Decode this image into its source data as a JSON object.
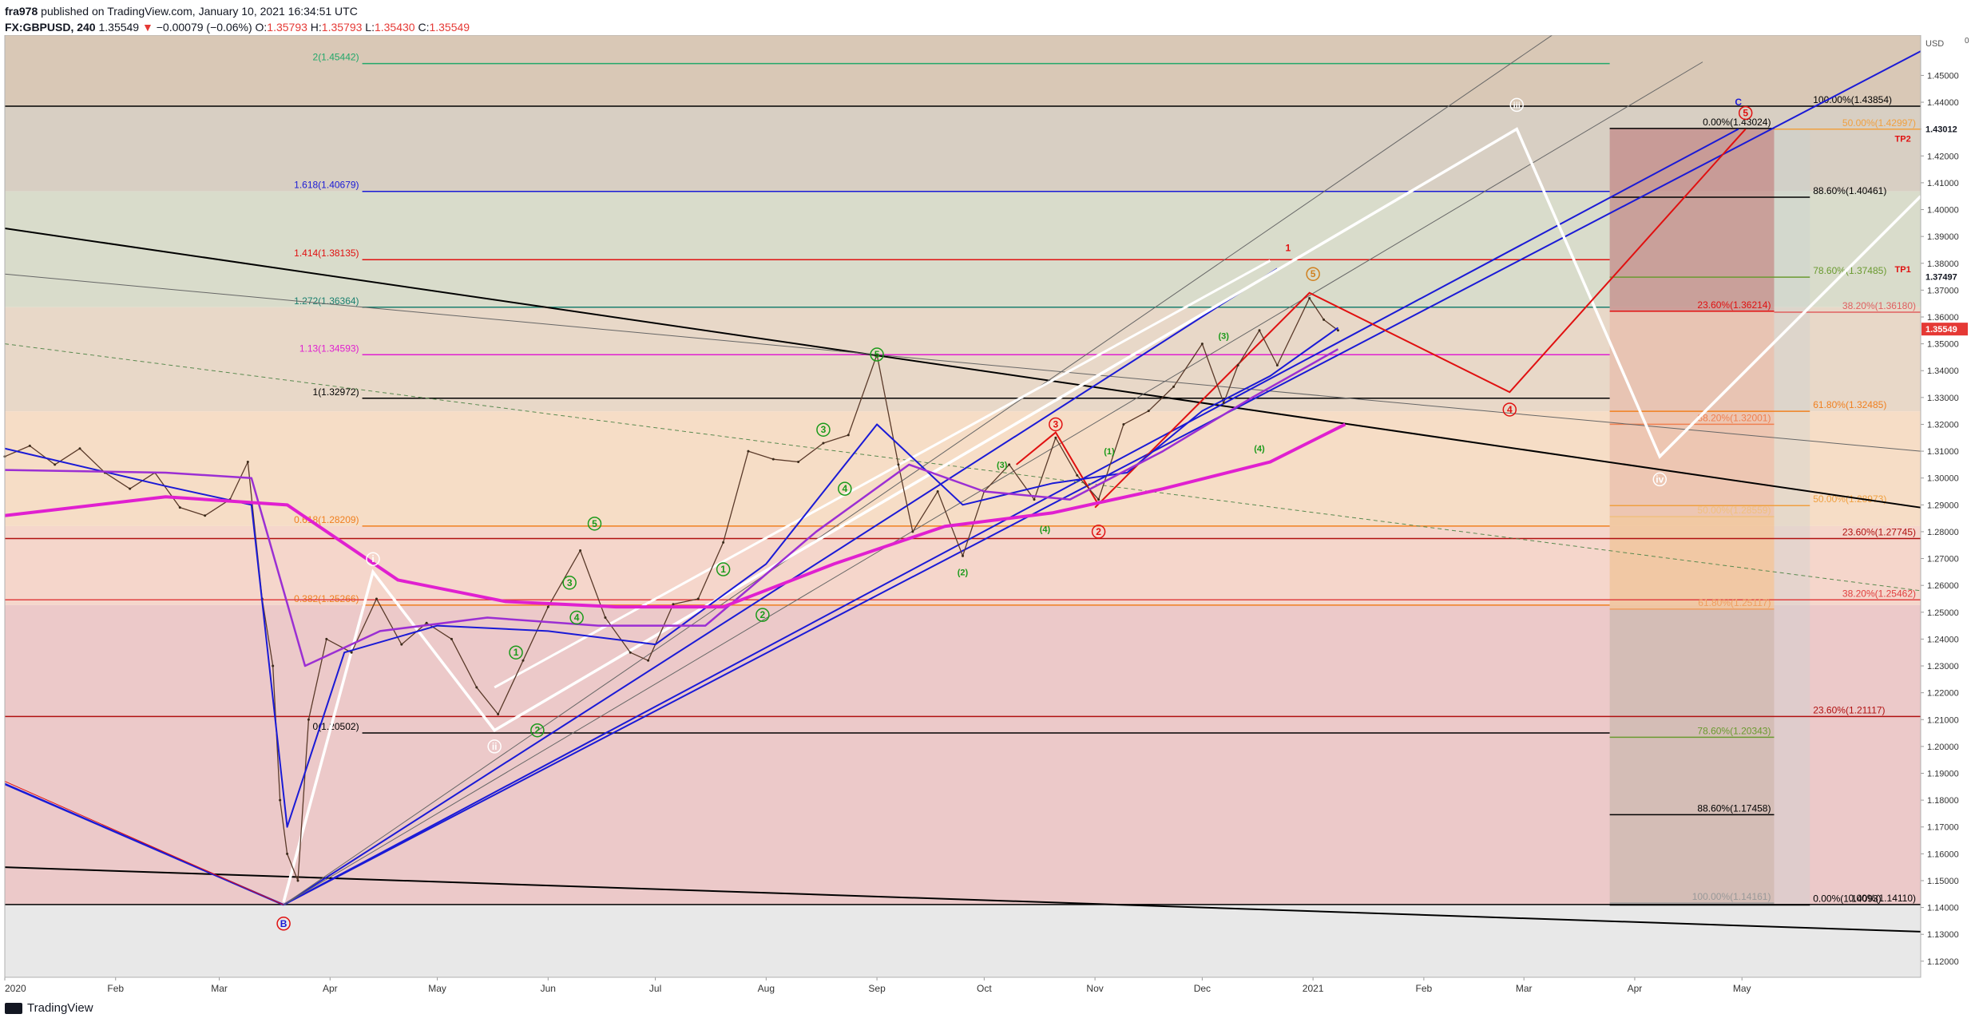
{
  "header": {
    "line1_user": "fra978",
    "line1_rest": "published on TradingView.com, January 10, 2021 16:34:51 UTC",
    "symbol": "FX:GBPUSD, 240",
    "last": "1.35549",
    "change": "−0.00079 (−0.06%)",
    "open_lbl": "O:",
    "open": "1.35793",
    "high_lbl": "H:",
    "high": "1.35793",
    "low_lbl": "L:",
    "low": "1.35430",
    "close_lbl": "C:",
    "close": "1.35549"
  },
  "footer": {
    "brand": "TradingView"
  },
  "axis_unit": "USD",
  "axis_extra": "0",
  "colors": {
    "blue": "#1a1ad6",
    "magenta": "#e020d0",
    "purple": "#9b2fd3",
    "red": "#e01010",
    "orange": "#f08020",
    "green": "#1a9a1a",
    "white": "#ffffff",
    "black": "#000000"
  },
  "chart_data": {
    "type": "line",
    "ylim": [
      1.114,
      1.465
    ],
    "xlim": [
      "2020-01-01",
      "2021-06-20"
    ],
    "x_ticks": [
      "2020",
      "Feb",
      "Mar",
      "Apr",
      "May",
      "Jun",
      "Jul",
      "Aug",
      "Sep",
      "Oct",
      "Nov",
      "Dec",
      "2021",
      "Feb",
      "Mar",
      "Apr",
      "May"
    ],
    "x_tick_dates": [
      "2020-01-01",
      "2020-02-01",
      "2020-03-01",
      "2020-04-01",
      "2020-05-01",
      "2020-06-01",
      "2020-07-01",
      "2020-08-01",
      "2020-09-01",
      "2020-10-01",
      "2020-11-01",
      "2020-12-01",
      "2021-01-01",
      "2021-02-01",
      "2021-03-01",
      "2021-04-01",
      "2021-05-01"
    ],
    "y_ticks": [
      1.12,
      1.13,
      1.14,
      1.15,
      1.16,
      1.17,
      1.18,
      1.19,
      1.2,
      1.21,
      1.22,
      1.23,
      1.24,
      1.25,
      1.26,
      1.27,
      1.28,
      1.29,
      1.3,
      1.31,
      1.32,
      1.33,
      1.34,
      1.35,
      1.36,
      1.37,
      1.38,
      1.39,
      1.4,
      1.41,
      1.42,
      1.43,
      1.44,
      1.45
    ],
    "price_labels": [
      {
        "text": "1.43012",
        "y": 1.43012,
        "color": "#131722"
      },
      {
        "text": "1.37497",
        "y": 1.37497,
        "color": "#131722"
      },
      {
        "text": "1.35549",
        "y": 1.35549,
        "color": "#e53935"
      }
    ],
    "series": [
      {
        "name": "",
        "kind": "price",
        "x": [
          "2020-01-01",
          "2020-01-08",
          "2020-01-15",
          "2020-01-22",
          "2020-01-29",
          "2020-02-05",
          "2020-02-12",
          "2020-02-19",
          "2020-02-26",
          "2020-03-04",
          "2020-03-09",
          "2020-03-13",
          "2020-03-16",
          "2020-03-18",
          "2020-03-20",
          "2020-03-23",
          "2020-03-26",
          "2020-03-31",
          "2020-04-07",
          "2020-04-14",
          "2020-04-21",
          "2020-04-28",
          "2020-05-05",
          "2020-05-12",
          "2020-05-18",
          "2020-05-25",
          "2020-06-01",
          "2020-06-10",
          "2020-06-17",
          "2020-06-24",
          "2020-06-29",
          "2020-07-06",
          "2020-07-13",
          "2020-07-20",
          "2020-07-27",
          "2020-08-03",
          "2020-08-10",
          "2020-08-17",
          "2020-08-24",
          "2020-09-01",
          "2020-09-07",
          "2020-09-11",
          "2020-09-18",
          "2020-09-25",
          "2020-10-01",
          "2020-10-08",
          "2020-10-15",
          "2020-10-21",
          "2020-10-27",
          "2020-11-02",
          "2020-11-09",
          "2020-11-16",
          "2020-11-23",
          "2020-12-01",
          "2020-12-07",
          "2020-12-11",
          "2020-12-17",
          "2020-12-22",
          "2020-12-31",
          "2021-01-04",
          "2021-01-08"
        ],
        "values": [
          1.308,
          1.312,
          1.305,
          1.311,
          1.302,
          1.296,
          1.302,
          1.289,
          1.286,
          1.292,
          1.306,
          1.255,
          1.23,
          1.18,
          1.16,
          1.15,
          1.21,
          1.24,
          1.235,
          1.255,
          1.238,
          1.246,
          1.24,
          1.222,
          1.212,
          1.232,
          1.252,
          1.273,
          1.248,
          1.235,
          1.232,
          1.253,
          1.255,
          1.276,
          1.31,
          1.307,
          1.306,
          1.313,
          1.316,
          1.346,
          1.305,
          1.28,
          1.295,
          1.271,
          1.295,
          1.305,
          1.292,
          1.315,
          1.301,
          1.292,
          1.32,
          1.325,
          1.334,
          1.35,
          1.328,
          1.342,
          1.355,
          1.342,
          1.367,
          1.359,
          1.355
        ]
      },
      {
        "name": "",
        "kind": "ma_fast",
        "x": [
          "2020-01-01",
          "2020-02-15",
          "2020-03-10",
          "2020-03-20",
          "2020-04-05",
          "2020-05-01",
          "2020-06-01",
          "2020-07-01",
          "2020-08-01",
          "2020-09-01",
          "2020-09-25",
          "2020-10-20",
          "2020-11-10",
          "2020-12-01",
          "2020-12-20",
          "2021-01-08"
        ],
        "values": [
          1.311,
          1.297,
          1.29,
          1.17,
          1.235,
          1.245,
          1.243,
          1.238,
          1.268,
          1.32,
          1.29,
          1.298,
          1.302,
          1.325,
          1.338,
          1.356
        ]
      },
      {
        "name": "",
        "kind": "ma_mid",
        "x": [
          "2020-01-01",
          "2020-02-15",
          "2020-03-10",
          "2020-03-25",
          "2020-04-15",
          "2020-05-15",
          "2020-06-15",
          "2020-07-15",
          "2020-08-15",
          "2020-09-10",
          "2020-10-01",
          "2020-10-25",
          "2020-11-20",
          "2020-12-15",
          "2021-01-08"
        ],
        "values": [
          1.303,
          1.302,
          1.3,
          1.23,
          1.243,
          1.248,
          1.245,
          1.245,
          1.28,
          1.305,
          1.295,
          1.292,
          1.31,
          1.33,
          1.348
        ]
      },
      {
        "name": "",
        "kind": "ma_slow",
        "x": [
          "2020-01-01",
          "2020-02-15",
          "2020-03-20",
          "2020-04-20",
          "2020-05-20",
          "2020-06-20",
          "2020-07-20",
          "2020-08-20",
          "2020-09-20",
          "2020-10-20",
          "2020-11-20",
          "2020-12-20",
          "2021-01-10"
        ],
        "values": [
          1.286,
          1.293,
          1.29,
          1.262,
          1.254,
          1.252,
          1.252,
          1.268,
          1.282,
          1.287,
          1.296,
          1.306,
          1.32
        ]
      }
    ],
    "fib_levels": [
      {
        "text": "2(1.45442)",
        "y": 1.45442,
        "color": "#22a86a",
        "x0": "2020-04-10",
        "x1": "2021-03-25",
        "side": "left"
      },
      {
        "text": "1.618(1.40679)",
        "y": 1.40679,
        "color": "#1a1ad6",
        "x0": "2020-04-10",
        "x1": "2021-03-25",
        "side": "left"
      },
      {
        "text": "1.414(1.38135)",
        "y": 1.38135,
        "color": "#e01010",
        "x0": "2020-04-10",
        "x1": "2021-03-25",
        "side": "left"
      },
      {
        "text": "1.272(1.36364)",
        "y": 1.36364,
        "color": "#1a7f6f",
        "x0": "2020-04-10",
        "x1": "2021-03-25",
        "side": "left"
      },
      {
        "text": "1.13(1.34593)",
        "y": 1.34593,
        "color": "#e020d0",
        "x0": "2020-04-10",
        "x1": "2021-03-25",
        "side": "left"
      },
      {
        "text": "1(1.32972)",
        "y": 1.32972,
        "color": "#000000",
        "x0": "2020-04-10",
        "x1": "2021-03-25",
        "side": "left"
      },
      {
        "text": "0.618(1.28209)",
        "y": 1.28209,
        "color": "#f08020",
        "x0": "2020-04-10",
        "x1": "2021-03-25",
        "side": "left"
      },
      {
        "text": "0.382(1.25266)",
        "y": 1.25266,
        "color": "#f08020",
        "x0": "2020-04-10",
        "x1": "2021-03-25",
        "side": "left"
      },
      {
        "text": "0(1.20502)",
        "y": 1.20502,
        "color": "#000000",
        "x0": "2020-04-10",
        "x1": "2021-03-25",
        "side": "left"
      },
      {
        "text": "100.00%(1.43854)",
        "y": 1.43854,
        "color": "#000000",
        "x0": "2020-01-01",
        "x1": "2021-06-20",
        "side": "mid"
      },
      {
        "text": "0.00%(1.43024)",
        "y": 1.43024,
        "color": "#000000",
        "x0": "2021-03-25",
        "x1": "2021-05-10",
        "side": "mid2"
      },
      {
        "text": "50.00%(1.42997)",
        "y": 1.42997,
        "color": "#f0a040",
        "x0": "2021-05-10",
        "x1": "2021-06-20",
        "side": "right"
      },
      {
        "text": "88.60%(1.40461)",
        "y": 1.40461,
        "color": "#000000",
        "x0": "2021-03-25",
        "x1": "2021-05-20",
        "side": "mid3"
      },
      {
        "text": "78.60%(1.37485)",
        "y": 1.37485,
        "color": "#6a9a30",
        "x0": "2021-03-25",
        "x1": "2021-05-20",
        "side": "mid3"
      },
      {
        "text": "23.60%(1.36214)",
        "y": 1.36214,
        "color": "#e01010",
        "x0": "2021-03-25",
        "x1": "2021-05-10",
        "side": "mid2"
      },
      {
        "text": "38.20%(1.36180)",
        "y": 1.3618,
        "color": "#e06060",
        "x0": "2021-05-10",
        "x1": "2021-06-20",
        "side": "right"
      },
      {
        "text": "61.80%(1.32485)",
        "y": 1.32485,
        "color": "#f08020",
        "x0": "2021-03-25",
        "x1": "2021-05-20",
        "side": "mid3"
      },
      {
        "text": "38.20%(1.32001)",
        "y": 1.32001,
        "color": "#f08050",
        "x0": "2021-03-25",
        "x1": "2021-05-10",
        "side": "mid2"
      },
      {
        "text": "50.00%(1.28973)",
        "y": 1.28973,
        "color": "#f0a040",
        "x0": "2021-03-25",
        "x1": "2021-05-20",
        "side": "mid3"
      },
      {
        "text": "50.00%(1.28559)",
        "y": 1.28559,
        "color": "#f0c080",
        "x0": "2021-03-25",
        "x1": "2021-05-10",
        "side": "mid2"
      },
      {
        "text": "23.60%(1.27745)",
        "y": 1.27745,
        "color": "#b01010",
        "x0": "2020-01-01",
        "x1": "2021-06-20",
        "side": "right"
      },
      {
        "text": "38.20%(1.25462)",
        "y": 1.25462,
        "color": "#e04040",
        "x0": "2020-01-01",
        "x1": "2021-06-20",
        "side": "right"
      },
      {
        "text": "61.80%(1.25117)",
        "y": 1.25117,
        "color": "#f0a060",
        "x0": "2021-03-25",
        "x1": "2021-05-10",
        "side": "mid2"
      },
      {
        "text": "23.60%(1.21117)",
        "y": 1.21117,
        "color": "#b01010",
        "x0": "2020-01-01",
        "x1": "2021-06-20",
        "side": "mid3"
      },
      {
        "text": "78.60%(1.20343)",
        "y": 1.20343,
        "color": "#6a9a30",
        "x0": "2021-03-25",
        "x1": "2021-05-10",
        "side": "mid2"
      },
      {
        "text": "88.60%(1.17458)",
        "y": 1.17458,
        "color": "#000000",
        "x0": "2021-03-25",
        "x1": "2021-05-10",
        "side": "mid2"
      },
      {
        "text": "100.00%(1.14161)",
        "y": 1.14161,
        "color": "#999999",
        "x0": "2021-03-25",
        "x1": "2021-05-10",
        "side": "mid2"
      },
      {
        "text": "0.00%(1.14093)",
        "y": 1.14093,
        "color": "#000000",
        "x0": "2021-03-25",
        "x1": "2021-05-20",
        "side": "mid3"
      },
      {
        "text": "0.00%(1.14110)",
        "y": 1.1411,
        "color": "#000000",
        "x0": "2020-01-01",
        "x1": "2021-06-20",
        "side": "right"
      }
    ],
    "annotations": [
      {
        "text": "TP2",
        "x": "2021-06-15",
        "y": 1.4265,
        "color": "#e01010"
      },
      {
        "text": "TP1",
        "x": "2021-06-15",
        "y": 1.3778,
        "color": "#e01010"
      },
      {
        "text": "iii",
        "x": "2021-02-27",
        "y": 1.439,
        "color": "#ffffff",
        "circle": true
      },
      {
        "text": "iv",
        "x": "2021-04-08",
        "y": 1.2995,
        "color": "#ffffff",
        "circle": true
      },
      {
        "text": "i",
        "x": "2020-04-13",
        "y": 1.2698,
        "color": "#ffffff",
        "circle": true
      },
      {
        "text": "ii",
        "x": "2020-05-17",
        "y": 1.2,
        "color": "#ffffff",
        "circle": true
      },
      {
        "text": "B",
        "x": "2020-03-19",
        "y": 1.134,
        "color": "#1a1ad6",
        "circle": true,
        "ring": "#e01010"
      },
      {
        "text": "C",
        "x": "2021-04-30",
        "y": 1.44,
        "color": "#1a1ad6"
      },
      {
        "text": "5",
        "x": "2021-05-02",
        "y": 1.436,
        "color": "#e01010",
        "circle": true
      },
      {
        "text": "4",
        "x": "2021-02-25",
        "y": 1.3255,
        "color": "#e01010",
        "circle": true
      },
      {
        "text": "2",
        "x": "2020-11-02",
        "y": 1.28,
        "color": "#e01010",
        "circle": true
      },
      {
        "text": "3",
        "x": "2020-10-21",
        "y": 1.32,
        "color": "#e01010",
        "circle": true
      },
      {
        "text": "1",
        "x": "2020-12-25",
        "y": 1.3858,
        "color": "#e01010"
      },
      {
        "text": "5",
        "x": "2021-01-01",
        "y": 1.376,
        "color": "#d08020",
        "circle": true
      },
      {
        "text": "5",
        "x": "2020-06-14",
        "y": 1.283,
        "color": "#1a9a1a",
        "circle": true
      },
      {
        "text": "3",
        "x": "2020-06-07",
        "y": 1.261,
        "color": "#1a9a1a",
        "circle": true
      },
      {
        "text": "4",
        "x": "2020-06-09",
        "y": 1.248,
        "color": "#1a9a1a",
        "circle": true
      },
      {
        "text": "1",
        "x": "2020-05-23",
        "y": 1.235,
        "color": "#1a9a1a",
        "circle": true
      },
      {
        "text": "2",
        "x": "2020-05-29",
        "y": 1.206,
        "color": "#1a9a1a",
        "circle": true
      },
      {
        "text": "1",
        "x": "2020-07-20",
        "y": 1.266,
        "color": "#1a9a1a",
        "circle": true
      },
      {
        "text": "2",
        "x": "2020-07-31",
        "y": 1.249,
        "color": "#1a9a1a",
        "circle": true
      },
      {
        "text": "3",
        "x": "2020-08-17",
        "y": 1.318,
        "color": "#1a9a1a",
        "circle": true
      },
      {
        "text": "4",
        "x": "2020-08-23",
        "y": 1.296,
        "color": "#1a9a1a",
        "circle": true
      },
      {
        "text": "5",
        "x": "2020-09-01",
        "y": 1.346,
        "color": "#1a9a1a",
        "circle": true
      },
      {
        "text": "(2)",
        "x": "2020-09-25",
        "y": 1.265,
        "color": "#1a9a1a"
      },
      {
        "text": "(3)",
        "x": "2020-10-06",
        "y": 1.305,
        "color": "#1a9a1a"
      },
      {
        "text": "(4)",
        "x": "2020-10-18",
        "y": 1.281,
        "color": "#1a9a1a"
      },
      {
        "text": "(1)",
        "x": "2020-11-05",
        "y": 1.31,
        "color": "#1a9a1a"
      },
      {
        "text": "(3)",
        "x": "2020-12-07",
        "y": 1.353,
        "color": "#1a9a1a"
      },
      {
        "text": "(4)",
        "x": "2020-12-17",
        "y": 1.311,
        "color": "#1a9a1a"
      }
    ]
  }
}
